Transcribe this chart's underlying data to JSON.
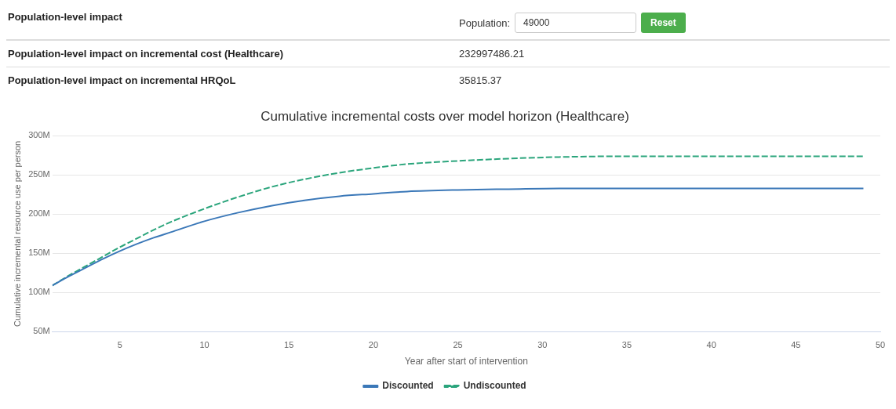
{
  "chart_data": [
    {
      "type": "other",
      "title": "Population-level impact",
      "annotations": [
        "Population:",
        "49000",
        "Reset",
        "Population-level impact on incremental cost (Healthcare)",
        "232997486.21",
        "Population-level impact on incremental HRQoL",
        "35815.37"
      ]
    },
    {
      "type": "line",
      "title": "Cumulative incremental costs over model horizon (Healthcare)",
      "xlabel": "Year after start of intervention",
      "ylabel": "Cumulative incremental resource use per person",
      "x": [
        1,
        2,
        3,
        4,
        5,
        6,
        7,
        8,
        10,
        12,
        14,
        16,
        18,
        20,
        22,
        25,
        28,
        31,
        35,
        40,
        45,
        49
      ],
      "series": [
        {
          "name": "Discounted",
          "color": "#3b78b8",
          "line_style": "solid",
          "values": [
            109000000,
            121000000,
            132000000,
            143000000,
            153000000,
            162000000,
            170000000,
            177000000,
            191000000,
            202000000,
            211000000,
            218000000,
            223000000,
            226000000,
            229000000,
            231000000,
            232000000,
            233000000,
            233000000,
            233000000,
            233000000,
            233000000
          ]
        },
        {
          "name": "Undiscounted",
          "color": "#2ba57c",
          "line_style": "dashed",
          "values": [
            109000000,
            122000000,
            134000000,
            146000000,
            158000000,
            169000000,
            180000000,
            190000000,
            207000000,
            222000000,
            235000000,
            245000000,
            253000000,
            259000000,
            264000000,
            268000000,
            271000000,
            273000000,
            274000000,
            274000000,
            274000000,
            274000000
          ]
        }
      ],
      "xlim": [
        1,
        50
      ],
      "xticks": [
        5,
        10,
        15,
        20,
        25,
        30,
        35,
        40,
        45,
        50
      ],
      "ylim": [
        50000000,
        300000000
      ],
      "yticks": [
        {
          "value": 50000000,
          "label": "50M"
        },
        {
          "value": 100000000,
          "label": "100M"
        },
        {
          "value": 150000000,
          "label": "150M"
        },
        {
          "value": 200000000,
          "label": "200M"
        },
        {
          "value": 250000000,
          "label": "250M"
        },
        {
          "value": 300000000,
          "label": "300M"
        }
      ],
      "grid": "y",
      "legend": "bottom",
      "marker": "none"
    }
  ]
}
